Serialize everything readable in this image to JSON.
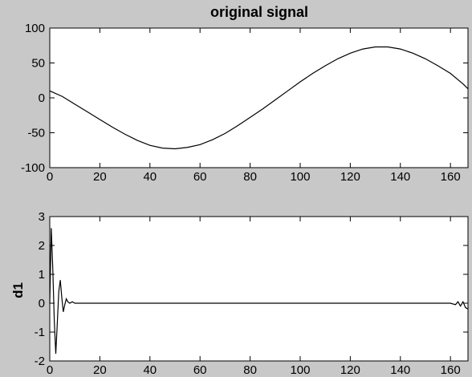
{
  "chart_data": [
    {
      "type": "line",
      "title": "original signal",
      "xlabel": "",
      "ylabel": "",
      "xlim": [
        0,
        167
      ],
      "ylim": [
        -100,
        100
      ],
      "xticks": [
        0,
        20,
        40,
        60,
        80,
        100,
        120,
        140,
        160
      ],
      "yticks": [
        -100,
        -50,
        0,
        50,
        100
      ],
      "grid": false,
      "series": [
        {
          "x": [
            0,
            5,
            10,
            15,
            20,
            25,
            30,
            35,
            40,
            45,
            50,
            55,
            60,
            65,
            70,
            75,
            80,
            85,
            90,
            95,
            100,
            105,
            110,
            115,
            120,
            125,
            130,
            135,
            140,
            145,
            150,
            155,
            160,
            165,
            167
          ],
          "values": [
            10,
            2,
            -9,
            -20,
            -31,
            -42,
            -52,
            -61,
            -68,
            -72,
            -73,
            -71,
            -67,
            -60,
            -51,
            -40,
            -28,
            -16,
            -3,
            10,
            23,
            35,
            46,
            56,
            64,
            70,
            73,
            73,
            70,
            64,
            56,
            46,
            35,
            20,
            13
          ]
        }
      ]
    },
    {
      "type": "line",
      "title": "",
      "xlabel": "",
      "ylabel": "d1",
      "xlim": [
        0,
        167
      ],
      "ylim": [
        -2,
        3
      ],
      "xticks": [
        0,
        20,
        40,
        60,
        80,
        100,
        120,
        140,
        160
      ],
      "yticks": [
        -2,
        -1,
        0,
        1,
        2,
        3
      ],
      "grid": false,
      "series": [
        {
          "x": [
            0,
            0.6,
            1.2,
            1.8,
            2.4,
            3,
            3.6,
            4.2,
            4.8,
            5.4,
            6,
            6.6,
            7.2,
            8,
            9,
            10,
            20,
            40,
            60,
            80,
            100,
            120,
            140,
            160,
            162,
            163,
            164,
            165,
            166,
            167
          ],
          "values": [
            0,
            2.6,
            1.2,
            -0.6,
            -1.75,
            -0.7,
            0.4,
            0.8,
            0.2,
            -0.3,
            -0.05,
            0.15,
            0.05,
            0.0,
            0.05,
            0,
            0,
            0,
            0,
            0,
            0,
            0,
            0,
            0,
            -0.05,
            0.05,
            -0.1,
            0.05,
            -0.15,
            -0.2
          ]
        }
      ]
    }
  ]
}
